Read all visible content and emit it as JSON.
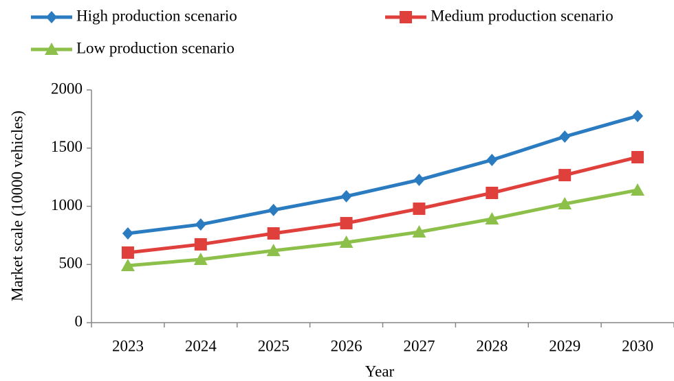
{
  "chart_data": {
    "type": "line",
    "x_label": "Year",
    "y_label": "Market scale (10000 vehicles)",
    "categories": [
      "2023",
      "2024",
      "2025",
      "2026",
      "2027",
      "2028",
      "2029",
      "2030"
    ],
    "series": [
      {
        "name": "High production scenario",
        "color": "#2a7bc0",
        "marker": "diamond",
        "values": [
          767,
          844,
          968,
          1086,
          1227,
          1398,
          1599,
          1776
        ]
      },
      {
        "name": "Medium production scenario",
        "color": "#e0403c",
        "marker": "square",
        "values": [
          602,
          673,
          767,
          855,
          979,
          1115,
          1268,
          1422
        ]
      },
      {
        "name": "Low production scenario",
        "color": "#8cc04a",
        "marker": "triangle",
        "values": [
          490,
          543,
          619,
          690,
          779,
          891,
          1021,
          1139
        ]
      }
    ],
    "ylim": [
      0,
      2000
    ],
    "yticks": [
      0,
      500,
      1000,
      1500,
      2000
    ],
    "grid": false
  }
}
